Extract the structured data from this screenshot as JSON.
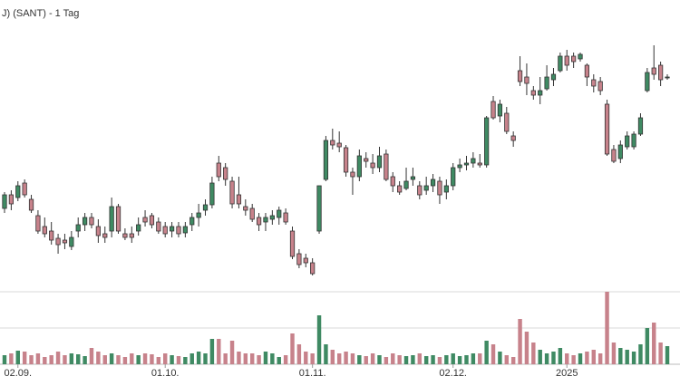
{
  "chart_data": {
    "type": "candlestick",
    "title": "J) (SANT) - 1 Tag",
    "up_color": "#3f8a63",
    "down_color": "#c7828b",
    "open": [
      100,
      115,
      112,
      128,
      110,
      92,
      80,
      75,
      67,
      65,
      58,
      75,
      82,
      90,
      80,
      72,
      75,
      102,
      72,
      72,
      75,
      90,
      92,
      85,
      80,
      75,
      80,
      73,
      82,
      90,
      98,
      104,
      150,
      145,
      130,
      115,
      102,
      100,
      90,
      85,
      88,
      90,
      95,
      75,
      50,
      45,
      40,
      75,
      132,
      175,
      172,
      167,
      140,
      135,
      155,
      150,
      145,
      160,
      135,
      125,
      122,
      132,
      125,
      120,
      125,
      130,
      118,
      125,
      145,
      148,
      150,
      150,
      148,
      218,
      202,
      205,
      180,
      252,
      245,
      230,
      225,
      232,
      242,
      252,
      268,
      268,
      265,
      258,
      242,
      240,
      215,
      165,
      155,
      168,
      168,
      182,
      230,
      255,
      258,
      245
    ],
    "high": [
      118,
      120,
      130,
      132,
      115,
      98,
      90,
      85,
      72,
      72,
      75,
      90,
      95,
      95,
      88,
      80,
      112,
      105,
      78,
      80,
      90,
      98,
      95,
      90,
      85,
      85,
      85,
      85,
      95,
      105,
      110,
      135,
      158,
      150,
      135,
      135,
      110,
      105,
      95,
      95,
      98,
      102,
      100,
      80,
      55,
      50,
      45,
      125,
      180,
      188,
      185,
      170,
      145,
      165,
      162,
      160,
      168,
      165,
      140,
      130,
      145,
      145,
      130,
      135,
      138,
      135,
      132,
      150,
      155,
      158,
      162,
      160,
      202,
      224,
      220,
      212,
      185,
      268,
      260,
      235,
      245,
      258,
      255,
      272,
      275,
      272,
      272,
      260,
      248,
      245,
      220,
      170,
      175,
      185,
      185,
      205,
      255,
      280,
      262,
      248
    ],
    "low": [
      95,
      98,
      108,
      112,
      95,
      72,
      68,
      60,
      50,
      55,
      54,
      68,
      75,
      78,
      62,
      62,
      68,
      72,
      65,
      62,
      70,
      80,
      78,
      72,
      68,
      68,
      68,
      68,
      75,
      80,
      92,
      100,
      130,
      125,
      100,
      100,
      92,
      85,
      75,
      75,
      82,
      82,
      82,
      44,
      34,
      35,
      26,
      72,
      130,
      165,
      162,
      135,
      115,
      130,
      145,
      138,
      140,
      130,
      118,
      115,
      120,
      125,
      110,
      115,
      118,
      105,
      110,
      120,
      140,
      142,
      145,
      145,
      145,
      198,
      195,
      182,
      168,
      235,
      225,
      220,
      215,
      230,
      235,
      250,
      252,
      255,
      262,
      235,
      228,
      225,
      158,
      150,
      150,
      165,
      165,
      180,
      228,
      242,
      235,
      242
    ],
    "close": [
      115,
      105,
      125,
      115,
      98,
      75,
      72,
      65,
      60,
      62,
      68,
      82,
      90,
      82,
      70,
      68,
      102,
      75,
      68,
      68,
      82,
      85,
      82,
      75,
      72,
      80,
      72,
      80,
      90,
      95,
      104,
      128,
      135,
      132,
      105,
      105,
      98,
      88,
      82,
      90,
      92,
      98,
      85,
      47,
      38,
      40,
      28,
      125,
      175,
      170,
      168,
      140,
      135,
      158,
      152,
      145,
      158,
      132,
      125,
      118,
      130,
      135,
      115,
      125,
      132,
      115,
      125,
      145,
      148,
      150,
      155,
      148,
      200,
      200,
      215,
      185,
      175,
      240,
      238,
      225,
      230,
      245,
      248,
      268,
      258,
      262,
      270,
      245,
      235,
      230,
      160,
      152,
      170,
      180,
      182,
      200,
      250,
      248,
      242,
      245
    ],
    "volume": [
      10,
      12,
      15,
      14,
      10,
      12,
      8,
      10,
      14,
      10,
      12,
      11,
      9,
      18,
      14,
      10,
      12,
      10,
      8,
      12,
      10,
      12,
      11,
      8,
      12,
      10,
      9,
      8,
      12,
      14,
      12,
      28,
      28,
      12,
      26,
      14,
      12,
      12,
      10,
      14,
      12,
      8,
      10,
      34,
      22,
      14,
      12,
      54,
      22,
      16,
      12,
      14,
      12,
      10,
      9,
      12,
      10,
      8,
      12,
      10,
      9,
      10,
      12,
      9,
      10,
      8,
      10,
      12,
      9,
      10,
      12,
      12,
      26,
      22,
      14,
      10,
      8,
      50,
      36,
      24,
      16,
      12,
      14,
      18,
      12,
      10,
      12,
      14,
      16,
      12,
      80,
      24,
      18,
      16,
      14,
      22,
      40,
      46,
      24,
      20
    ],
    "ylim": [
      0,
      300
    ],
    "vlim": [
      0,
      80
    ],
    "vticks": [
      40,
      80
    ],
    "xticks": [
      {
        "value": 2,
        "label": "02.09."
      },
      {
        "value": 24,
        "label": "01.10."
      },
      {
        "value": 46,
        "label": "01.11."
      },
      {
        "value": 67,
        "label": "02.12."
      },
      {
        "value": 84,
        "label": "2025"
      }
    ]
  }
}
